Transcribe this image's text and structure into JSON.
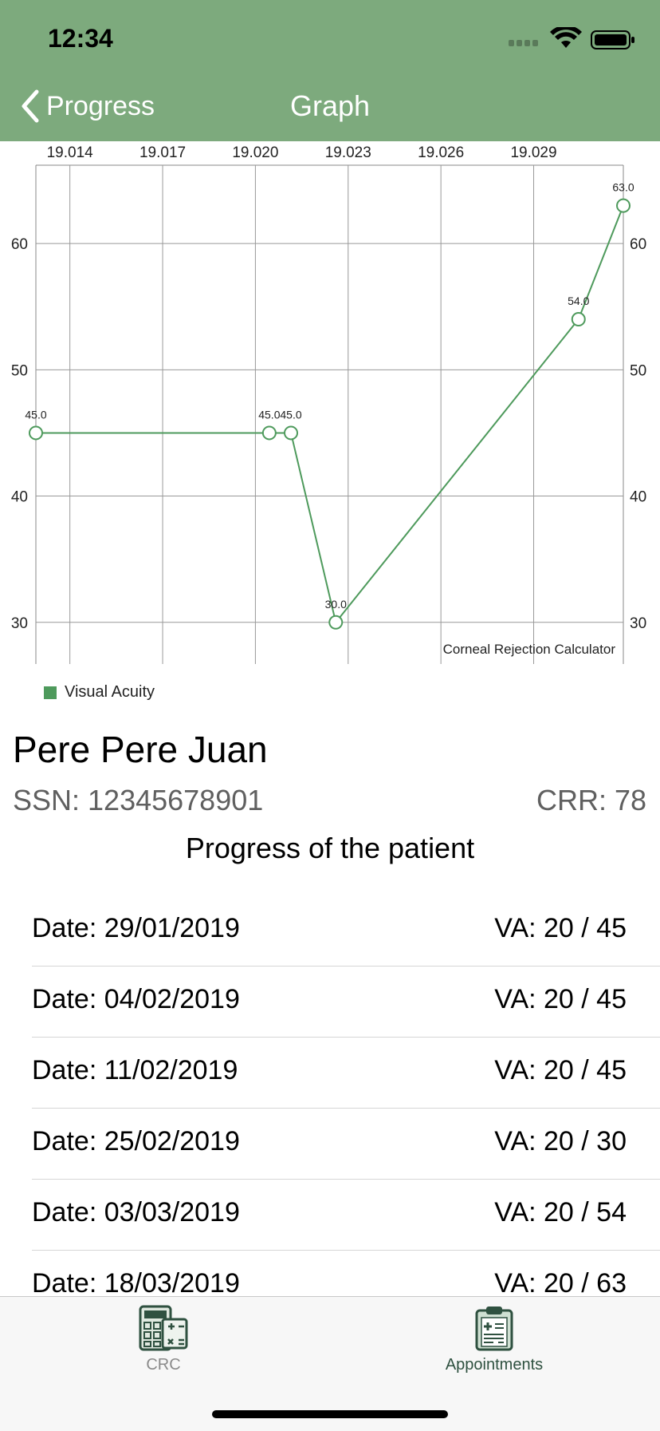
{
  "status_bar": {
    "time": "12:34"
  },
  "nav": {
    "back_label": "Progress",
    "title": "Graph"
  },
  "chart_data": {
    "type": "line",
    "x_axis_position": "top",
    "x_ticks": [
      "19.014",
      "19.017",
      "19.020",
      "19.023",
      "19.026",
      "19.029"
    ],
    "x_tick_values": [
      19.014,
      19.017,
      19.02,
      19.023,
      19.026,
      19.029
    ],
    "xlim": [
      19.0129,
      19.0319
    ],
    "y_ticks": [
      "30",
      "40",
      "50",
      "60"
    ],
    "y_tick_values": [
      30,
      40,
      50,
      60
    ],
    "ylim": [
      26.7,
      66.2
    ],
    "grid": true,
    "legend_position": "bottom-left",
    "description_label": "Corneal Rejection Calculator",
    "series": [
      {
        "name": "Visual Acuity",
        "color": "#4e9a5c",
        "x": [
          19.0129,
          19.02045,
          19.02115,
          19.0226,
          19.03045,
          19.0319
        ],
        "y": [
          45,
          45,
          45,
          30,
          54,
          63
        ],
        "labels": [
          "45.0",
          "45.0",
          "45.0",
          "30.0",
          "54.0",
          "63.0"
        ]
      }
    ]
  },
  "legend": {
    "label": "Visual Acuity"
  },
  "patient": {
    "name": "Pere Pere Juan",
    "ssn_text": "SSN: 12345678901",
    "crr_text": "CRR: 78",
    "section_title": "Progress of the patient"
  },
  "progress": [
    {
      "date": "Date: 29/01/2019",
      "va": "VA: 20 / 45"
    },
    {
      "date": "Date: 04/02/2019",
      "va": "VA: 20 / 45"
    },
    {
      "date": "Date: 11/02/2019",
      "va": "VA: 20 / 45"
    },
    {
      "date": "Date: 25/02/2019",
      "va": "VA: 20 / 30"
    },
    {
      "date": "Date: 03/03/2019",
      "va": "VA: 20 / 54"
    },
    {
      "date": "Date: 18/03/2019",
      "va": "VA: 20 / 63"
    }
  ],
  "tabbar": {
    "tabs": [
      {
        "label": "CRC",
        "icon": "calculator-icon",
        "selected": false
      },
      {
        "label": "Appointments",
        "icon": "clipboard-icon",
        "selected": true
      }
    ]
  },
  "colors": {
    "header": "#7daa7d",
    "series": "#4e9a5c",
    "tab_selected": "#2f5140",
    "tab_unselected": "#8a8a8a"
  }
}
